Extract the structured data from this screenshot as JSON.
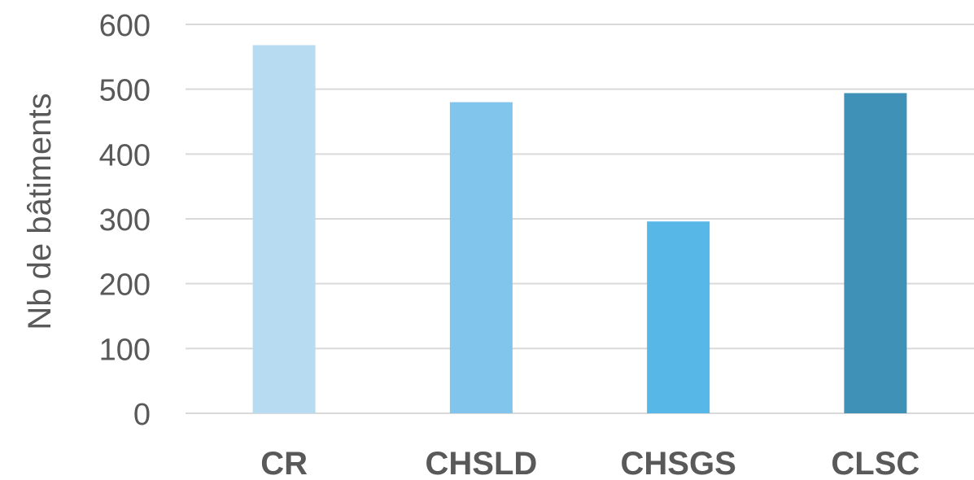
{
  "chart_data": {
    "type": "bar",
    "title": "",
    "xlabel": "",
    "ylabel": "Nb de bâtiments",
    "categories": [
      "CR",
      "CHSLD",
      "CHSGS",
      "CLSC"
    ],
    "values": [
      568,
      480,
      296,
      494
    ],
    "bar_colors": [
      "#b7dbf1",
      "#81c4ec",
      "#57b8e7",
      "#4091b8"
    ],
    "ylim": [
      0,
      600
    ],
    "yticks": [
      0,
      100,
      200,
      300,
      400,
      500,
      600
    ],
    "grid": true,
    "legend": "none"
  },
  "colors": {
    "grid": "#d9d9d9",
    "text": "#595959"
  }
}
